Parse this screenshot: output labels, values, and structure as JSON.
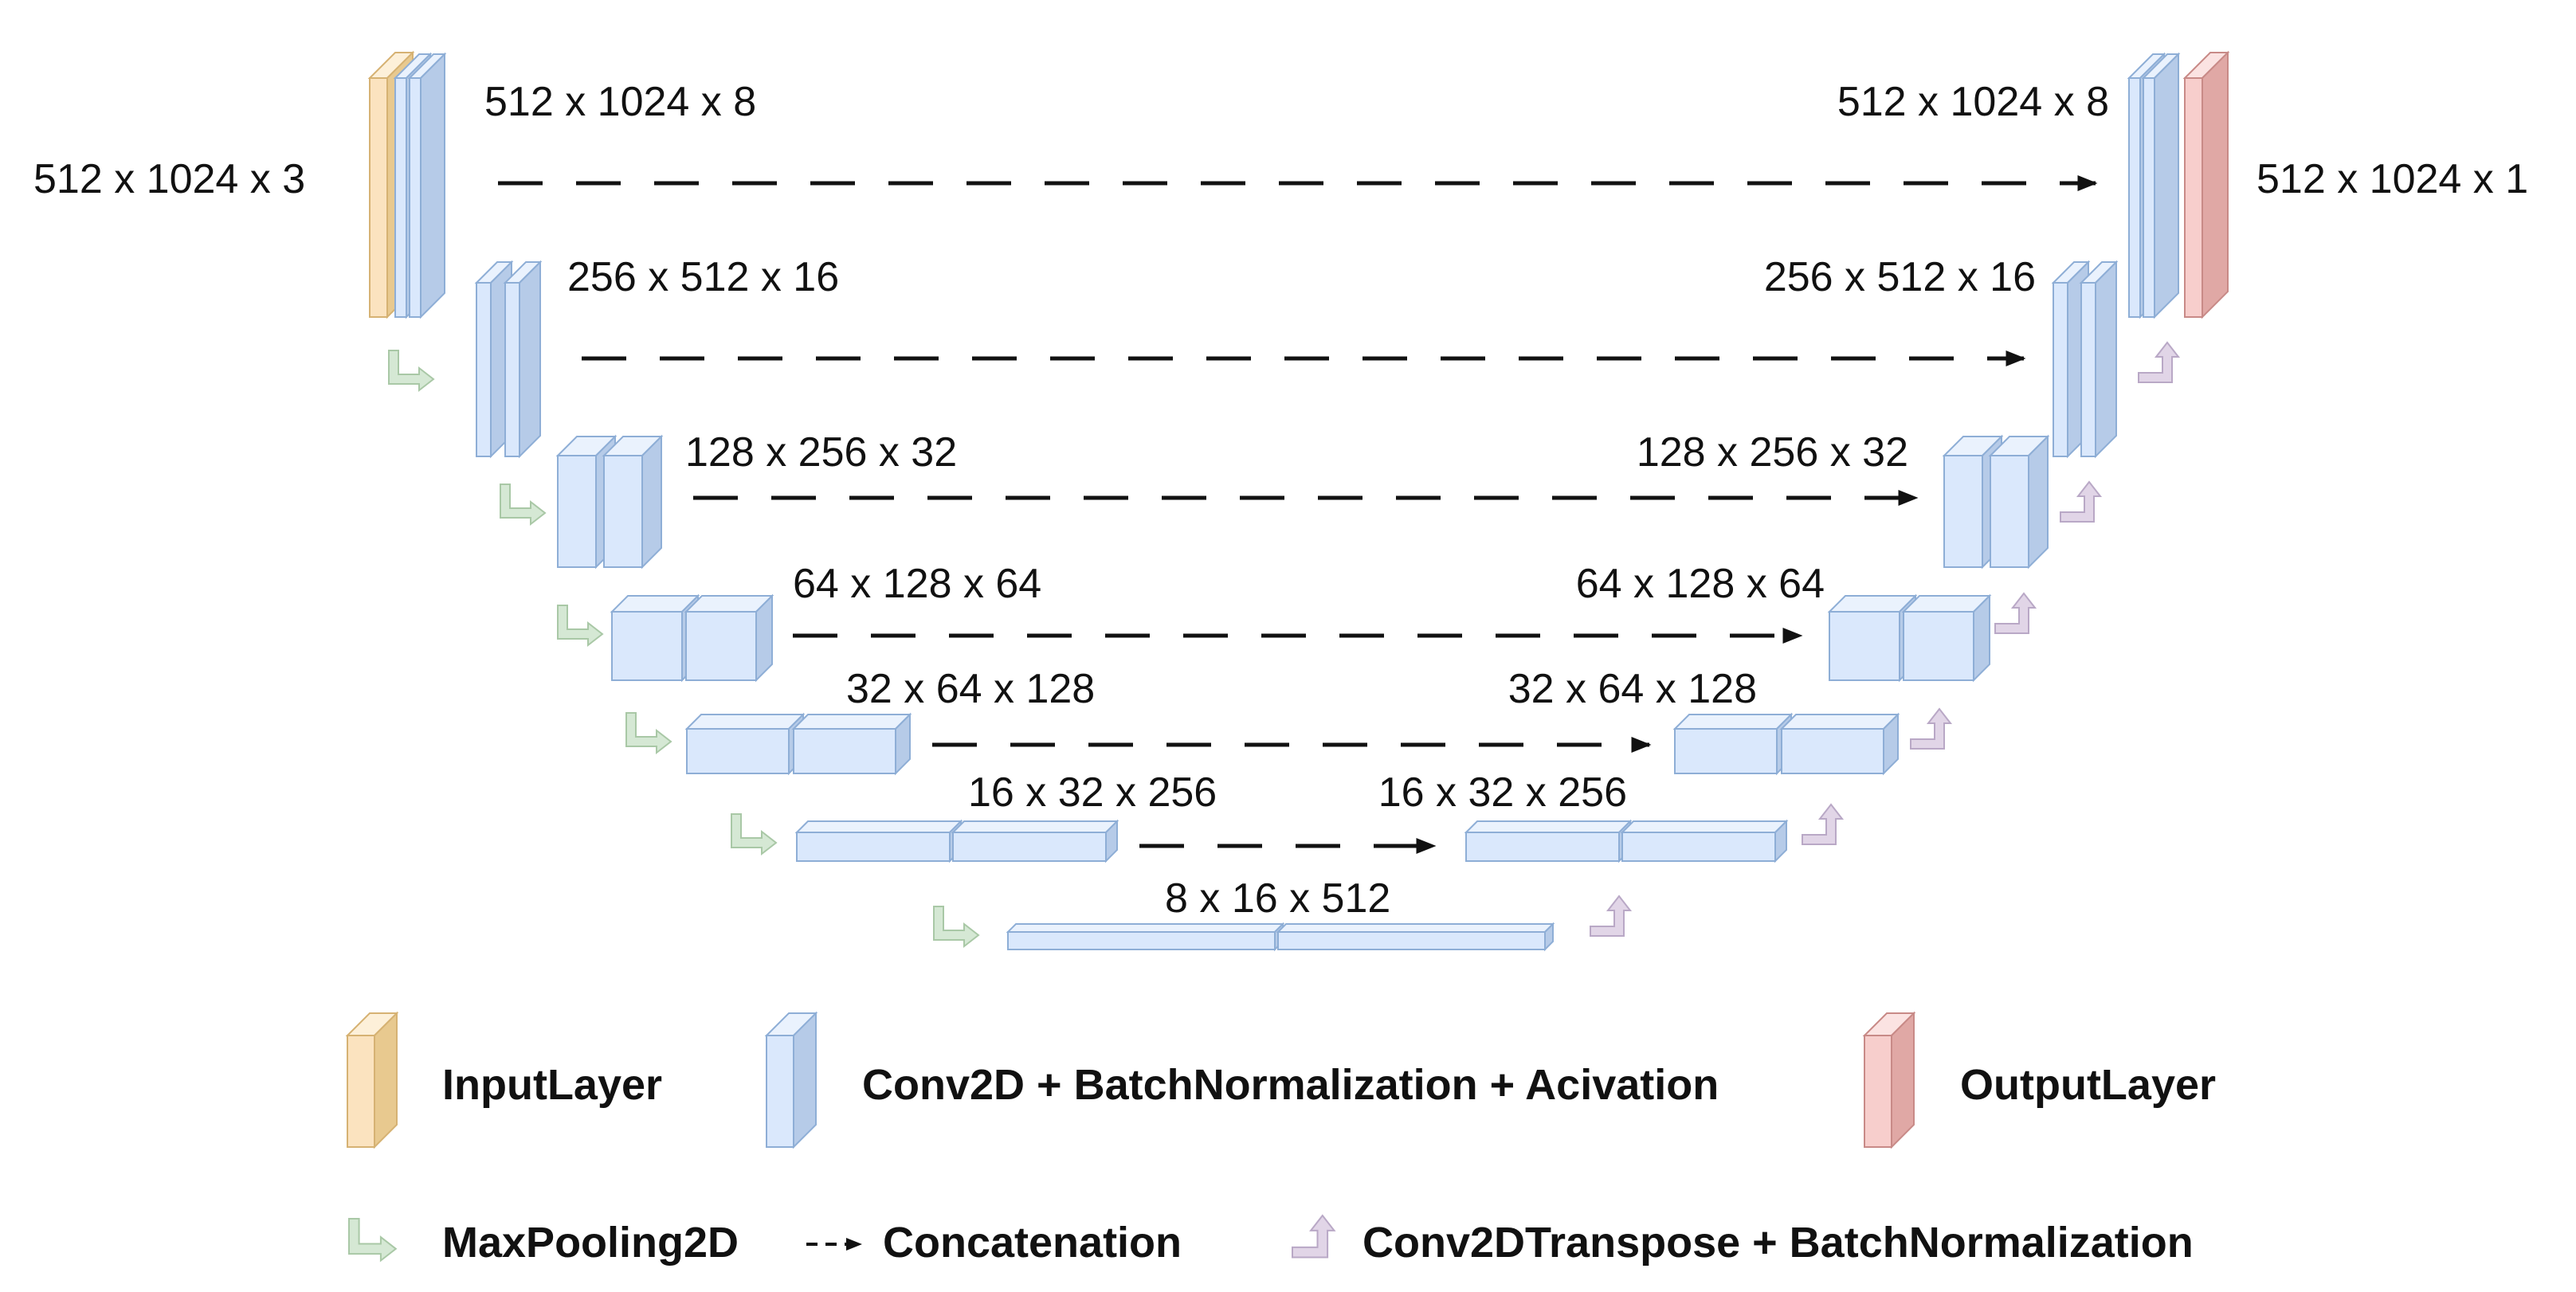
{
  "colors": {
    "input": {
      "front": "#fbe3bf",
      "side": "#e8c98f",
      "top": "#fdf0d9",
      "stroke": "#d6b273"
    },
    "conv": {
      "front": "#dae8fc",
      "side": "#b6cbe8",
      "top": "#eaf2fd",
      "stroke": "#8eaed6"
    },
    "output": {
      "front": "#f7cecc",
      "side": "#e0a8a5",
      "top": "#fbe3e2",
      "stroke": "#c88a87"
    },
    "pool": "#d5e8d4",
    "poolStroke": "#a9c8a6",
    "up": "#e1d5e7",
    "upStroke": "#b9a8c6",
    "arrow": "#111111"
  },
  "labels": {
    "input": "512 x 1024 x 3",
    "output": "512 x 1024 x 1",
    "enc1": "512 x 1024 x 8",
    "dec1": "512 x 1024 x 8",
    "enc2": "256 x 512 x 16",
    "dec2": "256 x 512 x 16",
    "enc3": "128 x 256 x 32",
    "dec3": "128 x 256 x 32",
    "enc4": "64 x 128 x 64",
    "dec4": "64 x 128 x 64",
    "enc5": "32 x 64 x 128",
    "dec5": "32 x 64 x 128",
    "enc6": "16 x 32 x 256",
    "dec6": "16 x 32 x 256",
    "bottleneck": "8 x 16 x 512"
  },
  "legend": {
    "input_layer": "InputLayer",
    "conv_block": "Conv2D + BatchNormalization + Acivation",
    "output_layer": "OutputLayer",
    "max_pooling": "MaxPooling2D",
    "concatenation": "Concatenation",
    "conv_transpose": "Conv2DTranspose + BatchNormalization"
  }
}
